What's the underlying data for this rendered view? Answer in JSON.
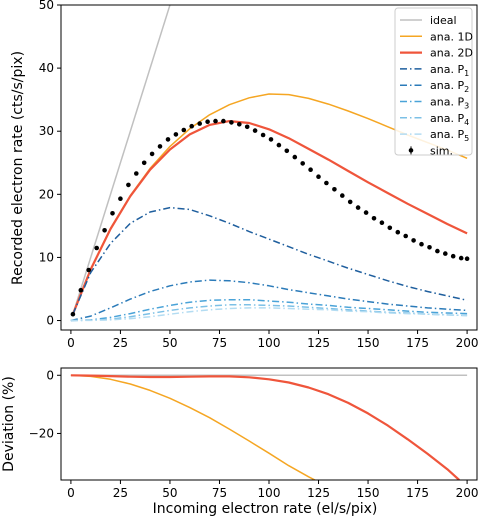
{
  "chart_data": [
    {
      "type": "line",
      "title": "",
      "xlabel": "",
      "ylabel": "Recorded electron rate (cts/s/pix)",
      "xlim": [
        -5,
        205
      ],
      "ylim": [
        -1.5,
        50
      ],
      "xticks": [
        0,
        25,
        50,
        75,
        100,
        125,
        150,
        175,
        200
      ],
      "yticks": [
        0,
        10,
        20,
        30,
        40,
        50
      ],
      "grid": false,
      "legend_position": "top-right",
      "series": [
        {
          "name": "ideal",
          "color": "#c0c0c0",
          "style": "solid",
          "x": [
            1,
            52
          ],
          "y": [
            1,
            52
          ]
        },
        {
          "name": "ana. 1D",
          "color": "#f5a623",
          "style": "solid",
          "x": [
            1,
            10,
            20,
            30,
            40,
            50,
            60,
            70,
            80,
            90,
            100,
            110,
            120,
            130,
            140,
            150,
            160,
            170,
            180,
            190,
            200
          ],
          "y": [
            1,
            8.2,
            14.6,
            19.8,
            24.1,
            27.6,
            30.4,
            32.6,
            34.2,
            35.3,
            35.9,
            35.8,
            35.2,
            34.3,
            33.2,
            32.0,
            30.7,
            29.4,
            28.2,
            27.0,
            25.7
          ]
        },
        {
          "name": "ana. 2D",
          "color": "#ef553b",
          "style": "solid",
          "x": [
            1,
            10,
            20,
            30,
            40,
            50,
            60,
            70,
            80,
            90,
            100,
            110,
            120,
            130,
            140,
            150,
            160,
            170,
            180,
            190,
            200
          ],
          "y": [
            1,
            8.1,
            14.5,
            19.7,
            23.9,
            27.1,
            29.5,
            31.0,
            31.6,
            31.3,
            30.3,
            28.9,
            27.2,
            25.5,
            23.7,
            21.9,
            20.2,
            18.5,
            16.9,
            15.3,
            13.8
          ]
        },
        {
          "name": "ana. P1",
          "sub": "1",
          "color": "#1f5f9e",
          "style": "dashdot",
          "x": [
            1,
            10,
            20,
            30,
            40,
            50,
            60,
            70,
            80,
            90,
            100,
            110,
            120,
            130,
            140,
            150,
            160,
            170,
            180,
            190,
            200
          ],
          "y": [
            1,
            7.6,
            12.2,
            15.4,
            17.2,
            17.9,
            17.6,
            16.6,
            15.4,
            14.1,
            12.9,
            11.7,
            10.5,
            9.4,
            8.3,
            7.3,
            6.3,
            5.4,
            4.6,
            3.9,
            3.2
          ]
        },
        {
          "name": "ana. P2",
          "sub": "2",
          "color": "#2b7bb9",
          "style": "dashdot",
          "x": [
            0,
            10,
            20,
            30,
            40,
            50,
            60,
            70,
            80,
            90,
            100,
            110,
            120,
            130,
            140,
            150,
            160,
            170,
            180,
            190,
            200
          ],
          "y": [
            0,
            0.7,
            2.0,
            3.4,
            4.6,
            5.5,
            6.1,
            6.4,
            6.3,
            6.0,
            5.5,
            4.9,
            4.4,
            3.9,
            3.4,
            3.0,
            2.6,
            2.3,
            2.0,
            1.8,
            1.6
          ]
        },
        {
          "name": "ana. P3",
          "sub": "3",
          "color": "#4aa3d8",
          "style": "dashdot",
          "x": [
            0,
            10,
            20,
            30,
            40,
            50,
            60,
            70,
            80,
            90,
            100,
            110,
            120,
            130,
            140,
            150,
            160,
            170,
            180,
            190,
            200
          ],
          "y": [
            0,
            0.1,
            0.5,
            1.1,
            1.8,
            2.4,
            2.9,
            3.2,
            3.3,
            3.3,
            3.1,
            2.9,
            2.6,
            2.4,
            2.1,
            1.9,
            1.7,
            1.5,
            1.3,
            1.2,
            1.1
          ]
        },
        {
          "name": "ana. P4",
          "sub": "4",
          "color": "#7cc0e6",
          "style": "dashdot",
          "x": [
            0,
            10,
            20,
            30,
            40,
            50,
            60,
            70,
            80,
            90,
            100,
            110,
            120,
            130,
            140,
            150,
            160,
            170,
            180,
            190,
            200
          ],
          "y": [
            0,
            0.05,
            0.2,
            0.6,
            1.1,
            1.6,
            2.0,
            2.3,
            2.5,
            2.5,
            2.4,
            2.3,
            2.1,
            1.9,
            1.7,
            1.5,
            1.3,
            1.2,
            1.0,
            0.9,
            0.8
          ]
        },
        {
          "name": "ana. P5",
          "sub": "5",
          "color": "#b3dcf2",
          "style": "dashdot",
          "x": [
            0,
            10,
            20,
            30,
            40,
            50,
            60,
            70,
            80,
            90,
            100,
            110,
            120,
            130,
            140,
            150,
            160,
            170,
            180,
            190,
            200
          ],
          "y": [
            0,
            0.02,
            0.1,
            0.3,
            0.6,
            1.0,
            1.4,
            1.7,
            1.9,
            2.0,
            2.0,
            1.9,
            1.8,
            1.7,
            1.5,
            1.4,
            1.2,
            1.1,
            1.0,
            0.9,
            0.8
          ]
        },
        {
          "name": "sim.",
          "color": "#000000",
          "style": "errorbar-markers",
          "x": [
            1,
            5,
            9,
            13,
            17,
            21,
            25,
            29,
            33,
            37,
            41,
            45,
            49,
            53,
            57,
            61,
            65,
            69,
            73,
            77,
            81,
            85,
            89,
            93,
            97,
            101,
            105,
            109,
            113,
            117,
            121,
            125,
            129,
            133,
            137,
            141,
            145,
            149,
            153,
            157,
            161,
            165,
            169,
            173,
            177,
            181,
            185,
            189,
            193,
            197,
            200
          ],
          "y": [
            1,
            4.8,
            8.0,
            11.5,
            14.3,
            17.0,
            19.3,
            21.5,
            23.3,
            25.0,
            26.4,
            27.6,
            28.7,
            29.5,
            30.2,
            30.8,
            31.2,
            31.5,
            31.6,
            31.6,
            31.4,
            31.1,
            30.7,
            30.1,
            29.4,
            28.7,
            27.8,
            26.9,
            25.9,
            24.9,
            23.9,
            22.8,
            21.8,
            20.8,
            19.8,
            18.8,
            17.9,
            17.1,
            16.2,
            15.5,
            14.7,
            14.0,
            13.4,
            12.7,
            12.1,
            11.6,
            11.0,
            10.6,
            10.2,
            9.9,
            9.8
          ]
        }
      ]
    },
    {
      "type": "line",
      "title": "",
      "xlabel": "Incoming electron rate (el/s/pix)",
      "ylabel": "Deviation (%)",
      "xlim": [
        -5,
        205
      ],
      "ylim": [
        -36,
        2.5
      ],
      "xticks": [
        0,
        25,
        50,
        75,
        100,
        125,
        150,
        175,
        200
      ],
      "yticks": [
        0,
        -20
      ],
      "grid": false,
      "series": [
        {
          "name": "ideal",
          "color": "#c0c0c0",
          "style": "solid",
          "x": [
            0,
            200
          ],
          "y": [
            0,
            0
          ]
        },
        {
          "name": "ana. 1D",
          "color": "#f5a623",
          "style": "solid",
          "x": [
            0,
            10,
            20,
            30,
            40,
            50,
            60,
            70,
            80,
            90,
            100,
            110,
            120,
            126
          ],
          "y": [
            0,
            -0.4,
            -1.4,
            -3.0,
            -5.2,
            -7.9,
            -11.1,
            -14.6,
            -18.5,
            -22.6,
            -26.8,
            -31.1,
            -34.9,
            -37
          ]
        },
        {
          "name": "ana. 2D",
          "color": "#ef553b",
          "style": "solid",
          "x": [
            0,
            10,
            20,
            30,
            40,
            50,
            60,
            70,
            80,
            90,
            100,
            110,
            120,
            130,
            140,
            150,
            160,
            170,
            180,
            190,
            196
          ],
          "y": [
            0,
            -0.1,
            -0.3,
            -0.5,
            -0.6,
            -0.6,
            -0.5,
            -0.4,
            -0.4,
            -0.7,
            -1.4,
            -2.5,
            -4.2,
            -6.5,
            -9.5,
            -13.1,
            -17.3,
            -22.0,
            -27.0,
            -32.3,
            -36
          ]
        }
      ]
    }
  ]
}
